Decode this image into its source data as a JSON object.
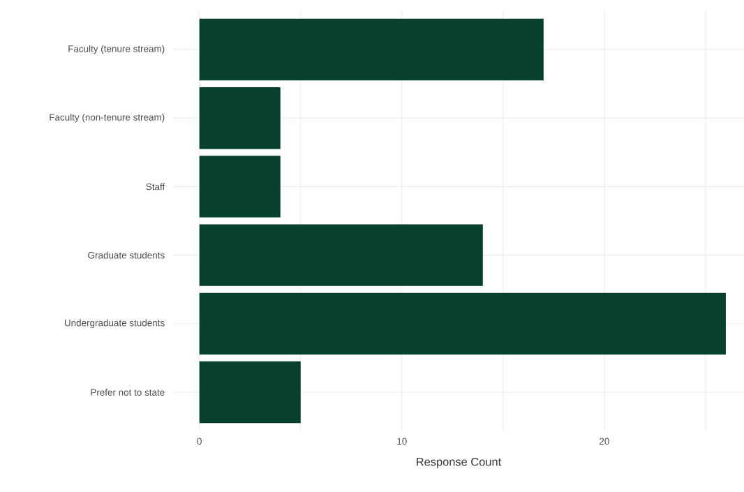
{
  "chart_data": {
    "type": "bar",
    "orientation": "horizontal",
    "xlabel": "Response Count",
    "categories": [
      "Faculty (tenure stream)",
      "Faculty (non-tenure stream)",
      "Staff",
      "Graduate students",
      "Undergraduate students",
      "Prefer not to state"
    ],
    "values": [
      17,
      4,
      4,
      14,
      26,
      5
    ],
    "color": "#07402b",
    "xlim": [
      -1.3,
      26.9
    ],
    "xticks": [
      0,
      {
        "value": 5,
        "label": null
      },
      10,
      {
        "value": 15,
        "label": null
      },
      20,
      {
        "value": 25,
        "label": null
      }
    ],
    "grid": true
  }
}
